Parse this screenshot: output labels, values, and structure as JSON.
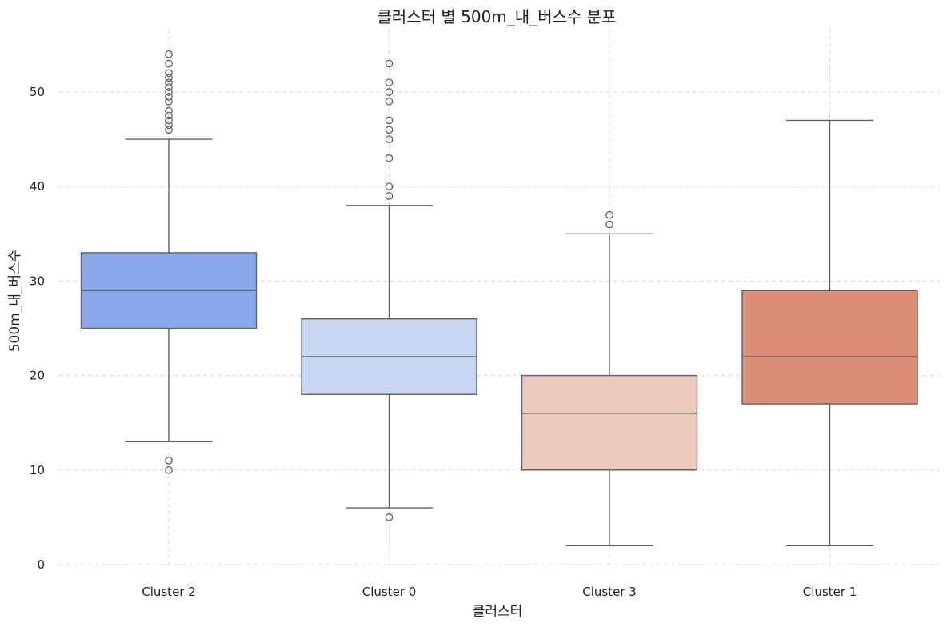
{
  "chart_data": {
    "type": "box",
    "title": "클러스터 별 500m_내_버스수 분포",
    "xlabel": "클러스터",
    "ylabel": "500m_내_버스수",
    "ylim": [
      0,
      56
    ],
    "yticks": [
      0,
      10,
      20,
      30,
      40,
      50
    ],
    "grid": true,
    "grid_style": "dashed",
    "boxes": [
      {
        "category": "Cluster 2",
        "color": "#8aa7e9",
        "whisker_low": 13,
        "q1": 25,
        "median": 29,
        "q3": 33,
        "whisker_high": 45,
        "outliers": [
          10,
          11,
          46,
          46.5,
          47,
          47.5,
          48,
          49,
          49.5,
          50,
          50.5,
          51,
          51.5,
          52,
          53,
          54
        ]
      },
      {
        "category": "Cluster 0",
        "color": "#c7d5f1",
        "whisker_low": 6,
        "q1": 18,
        "median": 22,
        "q3": 26,
        "whisker_high": 38,
        "outliers": [
          5,
          39,
          40,
          43,
          45,
          46,
          47,
          49,
          50,
          51,
          53
        ]
      },
      {
        "category": "Cluster 3",
        "color": "#eacbbb",
        "whisker_low": 2,
        "q1": 10,
        "median": 16,
        "q3": 20,
        "whisker_high": 35,
        "outliers": [
          36,
          37
        ]
      },
      {
        "category": "Cluster 1",
        "color": "#dc8e76",
        "whisker_low": 2,
        "q1": 17,
        "median": 22,
        "q3": 29,
        "whisker_high": 47,
        "outliers": []
      }
    ]
  }
}
